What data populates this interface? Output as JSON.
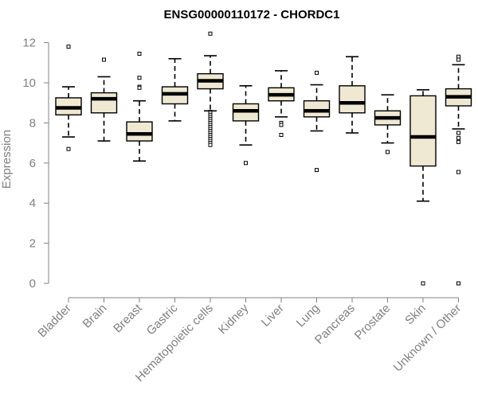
{
  "chart_data": {
    "type": "boxplot",
    "title": "ENSG00000110172 - CHORDC1",
    "xlabel": "",
    "ylabel": "Expression",
    "ylim": [
      0,
      12.4
    ],
    "yticks": [
      "0",
      "2",
      "4",
      "6",
      "8",
      "10",
      "12"
    ],
    "grid": false,
    "colors": {
      "box_fill": "#efe9d3",
      "box_stroke": "#000000",
      "axis": "#808080",
      "tick_label": "#808080"
    },
    "categories": [
      "Bladder",
      "Brain",
      "Breast",
      "Gastric",
      "Hematopoietic cells",
      "Kidney",
      "Liver",
      "Lung",
      "Pancreas",
      "Prostate",
      "Skin",
      "Unknown / Other"
    ],
    "boxes": [
      {
        "category": "Bladder",
        "whisker_low": 7.3,
        "q1": 8.4,
        "median": 8.75,
        "q3": 9.25,
        "whisker_high": 9.8,
        "outliers": [
          11.8,
          6.7
        ]
      },
      {
        "category": "Brain",
        "whisker_low": 7.1,
        "q1": 8.5,
        "median": 9.2,
        "q3": 9.5,
        "whisker_high": 10.3,
        "outliers": [
          11.15
        ]
      },
      {
        "category": "Breast",
        "whisker_low": 6.1,
        "q1": 7.1,
        "median": 7.45,
        "q3": 8.05,
        "whisker_high": 9.1,
        "outliers": [
          11.45,
          10.25,
          9.8,
          9.75
        ]
      },
      {
        "category": "Gastric",
        "whisker_low": 8.1,
        "q1": 8.95,
        "median": 9.45,
        "q3": 9.8,
        "whisker_high": 11.2,
        "outliers": []
      },
      {
        "category": "Hematopoietic cells",
        "whisker_low": 8.6,
        "q1": 9.7,
        "median": 10.1,
        "q3": 10.45,
        "whisker_high": 11.35,
        "outliers": [
          12.45,
          8.55,
          8.5,
          8.4,
          8.3,
          8.2,
          8.1,
          8.0,
          7.9,
          7.8,
          7.7,
          7.6,
          7.5,
          7.4,
          7.3,
          7.2,
          7.1,
          7.0,
          6.9
        ]
      },
      {
        "category": "Kidney",
        "whisker_low": 6.9,
        "q1": 8.1,
        "median": 8.6,
        "q3": 8.95,
        "whisker_high": 9.85,
        "outliers": [
          6.0
        ]
      },
      {
        "category": "Liver",
        "whisker_low": 8.3,
        "q1": 9.1,
        "median": 9.4,
        "q3": 9.75,
        "whisker_high": 10.6,
        "outliers": [
          8.0,
          7.9,
          7.4
        ]
      },
      {
        "category": "Lung",
        "whisker_low": 7.6,
        "q1": 8.3,
        "median": 8.6,
        "q3": 9.1,
        "whisker_high": 9.9,
        "outliers": [
          10.5,
          5.65
        ]
      },
      {
        "category": "Pancreas",
        "whisker_low": 7.5,
        "q1": 8.5,
        "median": 9.0,
        "q3": 9.85,
        "whisker_high": 11.3,
        "outliers": []
      },
      {
        "category": "Prostate",
        "whisker_low": 7.0,
        "q1": 7.9,
        "median": 8.25,
        "q3": 8.6,
        "whisker_high": 9.4,
        "outliers": [
          6.55
        ]
      },
      {
        "category": "Skin",
        "whisker_low": 4.1,
        "q1": 5.85,
        "median": 7.3,
        "q3": 9.35,
        "whisker_high": 9.65,
        "outliers": [
          0.0
        ]
      },
      {
        "category": "Unknown / Other",
        "whisker_low": 7.7,
        "q1": 8.85,
        "median": 9.3,
        "q3": 9.7,
        "whisker_high": 10.9,
        "outliers": [
          11.3,
          11.15,
          7.5,
          7.25,
          7.05,
          5.55,
          0.0
        ]
      }
    ]
  }
}
